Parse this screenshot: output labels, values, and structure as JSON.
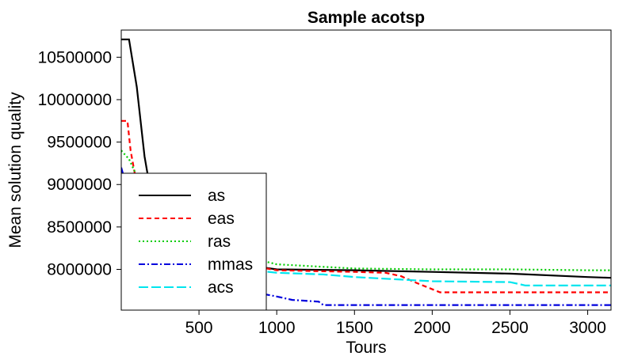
{
  "chart_data": {
    "type": "line",
    "title": "Sample acotsp",
    "xlabel": "Tours",
    "ylabel": "Mean solution quality",
    "xlim": [
      0,
      3150
    ],
    "ylim": [
      7520000,
      10820000
    ],
    "x_ticks": [
      500,
      1000,
      1500,
      2000,
      2500,
      3000
    ],
    "y_ticks": [
      8000000,
      8500000,
      9000000,
      9500000,
      10000000,
      10500000
    ],
    "legend_position": "bottom-left",
    "series": [
      {
        "name": "as",
        "color": "#000000",
        "dash": "solid",
        "x": [
          0,
          50,
          100,
          150,
          200,
          300,
          500,
          800,
          1000,
          1500,
          2000,
          2500,
          3000,
          3150
        ],
        "y": [
          10710000,
          10710000,
          10150000,
          9330000,
          8800000,
          8500000,
          8200000,
          8050000,
          8000000,
          7990000,
          7970000,
          7950000,
          7910000,
          7900000
        ]
      },
      {
        "name": "eas",
        "color": "#ff0000",
        "dash": "6,4",
        "x": [
          0,
          40,
          60,
          80,
          120,
          300,
          500,
          1000,
          1500,
          1700,
          1800,
          1900,
          2050,
          2100,
          2500,
          3000,
          3150
        ],
        "y": [
          9750000,
          9750000,
          9400000,
          9200000,
          8800000,
          8400000,
          8150000,
          7990000,
          7970000,
          7960000,
          7920000,
          7840000,
          7730000,
          7730000,
          7730000,
          7730000,
          7730000
        ]
      },
      {
        "name": "ras",
        "color": "#00cc00",
        "dash": "2,3",
        "x": [
          0,
          50,
          100,
          300,
          500,
          800,
          1000,
          1500,
          2000,
          2500,
          3000,
          3150
        ],
        "y": [
          9400000,
          9300000,
          9100000,
          8600000,
          8300000,
          8150000,
          8060000,
          8010000,
          8000000,
          8000000,
          7990000,
          7990000
        ]
      },
      {
        "name": "mmas",
        "color": "#0000dd",
        "dash": "8,3,2,3",
        "x": [
          0,
          30,
          100,
          200,
          400,
          600,
          800,
          1000,
          1100,
          1270,
          1300,
          1500,
          2000,
          2500,
          3000,
          3150
        ],
        "y": [
          9200000,
          9000000,
          8700000,
          8400000,
          8100000,
          7900000,
          7750000,
          7680000,
          7640000,
          7620000,
          7580000,
          7580000,
          7580000,
          7580000,
          7580000,
          7580000
        ]
      },
      {
        "name": "acs",
        "color": "#00e5ee",
        "dash": "12,4",
        "x": [
          0,
          50,
          100,
          300,
          500,
          800,
          1000,
          1300,
          1500,
          1800,
          2000,
          2500,
          2550,
          2600,
          3000,
          3150
        ],
        "y": [
          9000000,
          8900000,
          8700000,
          8400000,
          8200000,
          8000000,
          7960000,
          7940000,
          7910000,
          7880000,
          7860000,
          7850000,
          7830000,
          7810000,
          7810000,
          7810000
        ]
      }
    ]
  }
}
